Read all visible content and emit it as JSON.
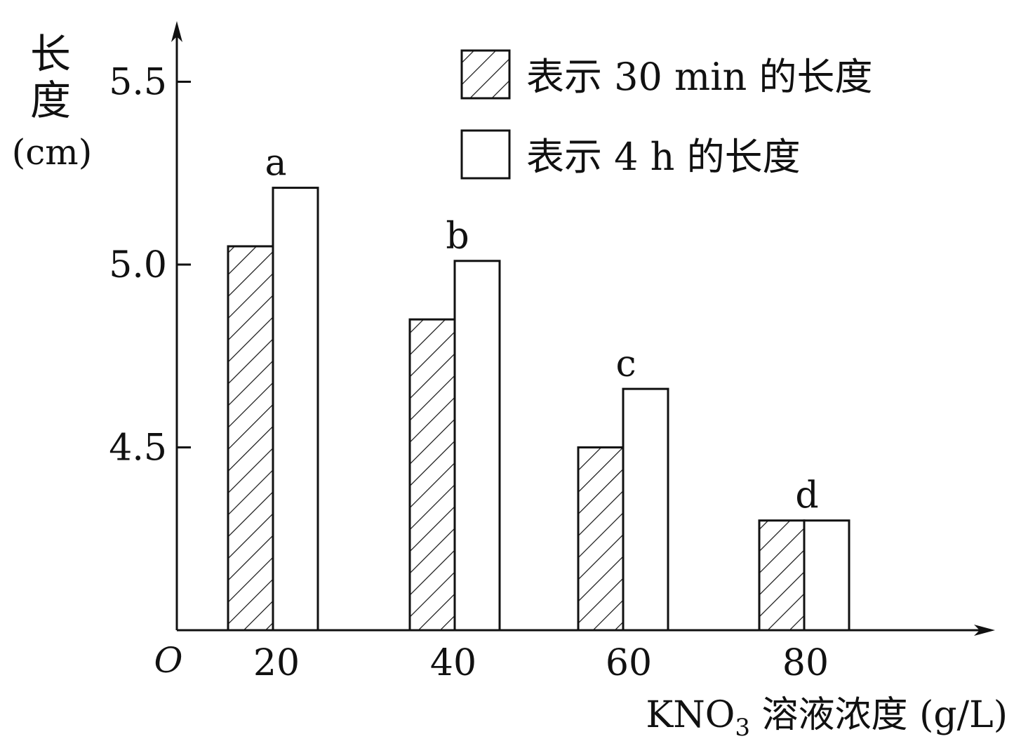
{
  "chart_data": {
    "type": "bar",
    "title": "",
    "ylabel_chars": [
      "长",
      "度"
    ],
    "ylabel_unit": "(cm)",
    "xlabel_prefix": "KNO",
    "xlabel_sub": "3",
    "xlabel_suffix": " 溶液浓度 (g/L)",
    "origin_label": "O",
    "categories": [
      "20",
      "40",
      "60",
      "80"
    ],
    "bar_labels": [
      "a",
      "b",
      "c",
      "d"
    ],
    "y_ticks": [
      "4.5",
      "5.0",
      "5.5"
    ],
    "ylim": [
      4.0,
      5.6
    ],
    "axis_baseline_value": 4.0,
    "series": [
      {
        "name": "表示 30 min 的长度",
        "style": "hatched",
        "values": [
          5.05,
          4.85,
          4.5,
          4.3
        ]
      },
      {
        "name": "表示 4 h 的长度",
        "style": "open",
        "values": [
          5.21,
          5.01,
          4.66,
          4.3
        ]
      }
    ],
    "legend_position": "top-right",
    "grid": false,
    "colors": {
      "stroke": "#111111",
      "fill": "#ffffff"
    }
  }
}
